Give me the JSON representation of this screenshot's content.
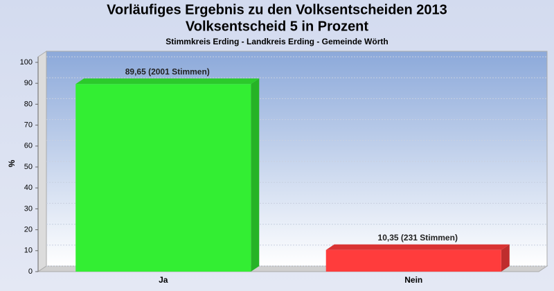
{
  "chart_data": {
    "type": "bar",
    "title": [
      "Vorläufiges Ergebnis zu den Volksentscheiden 2013",
      "Volksentscheid 5 in Prozent"
    ],
    "subtitle": "Stimmkreis Erding - Landkreis Erding - Gemeinde Wörth",
    "y_label": "%",
    "categories": [
      "Ja",
      "Nein"
    ],
    "values": [
      89.65,
      10.35
    ],
    "value_labels": [
      "89,65 (2001 Stimmen)",
      "10,35 (231 Stimmen)"
    ],
    "colors": [
      "#33ee33",
      "#ff3c3c"
    ],
    "ylim": [
      0,
      100
    ],
    "yticks": [
      0,
      10,
      20,
      30,
      40,
      50,
      60,
      70,
      80,
      90,
      100
    ],
    "grid": true
  }
}
